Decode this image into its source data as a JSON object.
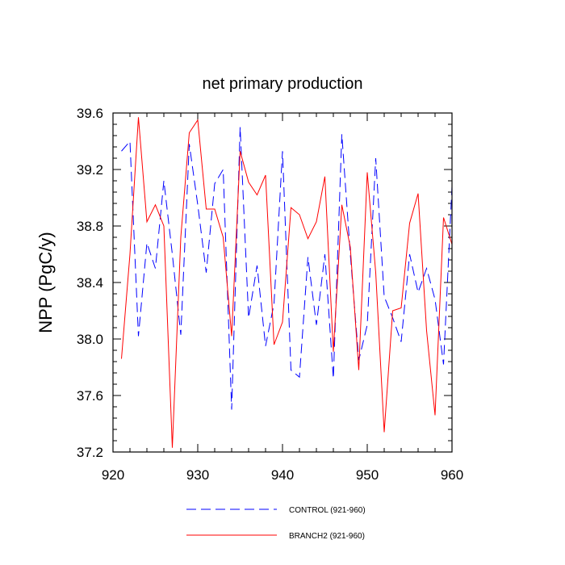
{
  "chart_data": {
    "type": "line",
    "title": "net primary production",
    "xlabel": "",
    "ylabel": "NPP  (PgC/y)",
    "xlim": [
      920,
      960
    ],
    "ylim": [
      37.2,
      39.6
    ],
    "x_ticks": [
      "920",
      "930",
      "940",
      "950",
      "960"
    ],
    "y_ticks": [
      "37.2",
      "37.6",
      "38.0",
      "38.4",
      "38.8",
      "39.2",
      "39.6"
    ],
    "x": [
      921,
      922,
      923,
      924,
      925,
      926,
      927,
      928,
      929,
      930,
      931,
      932,
      933,
      934,
      935,
      936,
      937,
      938,
      939,
      940,
      941,
      942,
      943,
      944,
      945,
      946,
      947,
      948,
      949,
      950,
      951,
      952,
      953,
      954,
      955,
      956,
      957,
      958,
      959,
      960
    ],
    "series": [
      {
        "name": "CONTROL (921-960)",
        "color": "#0000ff",
        "style": "dashed",
        "values": [
          39.33,
          39.4,
          38.02,
          38.68,
          38.5,
          39.12,
          38.6,
          38.03,
          39.38,
          38.95,
          38.47,
          39.1,
          39.2,
          37.5,
          39.5,
          38.15,
          38.52,
          37.95,
          38.25,
          39.33,
          37.78,
          37.73,
          38.58,
          38.1,
          38.6,
          37.72,
          39.45,
          38.6,
          37.85,
          38.1,
          39.28,
          38.3,
          38.15,
          37.98,
          38.6,
          38.33,
          38.5,
          38.28,
          37.82,
          39.08
        ]
      },
      {
        "name": "BRANCH2 (921-960)",
        "color": "#ff0000",
        "style": "solid",
        "values": [
          37.86,
          38.6,
          39.57,
          38.83,
          38.95,
          38.8,
          37.23,
          38.72,
          39.46,
          39.55,
          38.92,
          38.92,
          38.72,
          38.02,
          39.33,
          39.11,
          39.02,
          39.16,
          37.96,
          38.12,
          38.93,
          38.88,
          38.71,
          38.83,
          39.15,
          37.91,
          38.95,
          38.65,
          37.78,
          39.18,
          38.47,
          37.34,
          38.2,
          38.22,
          38.82,
          39.03,
          38.06,
          37.46,
          38.86,
          38.67
        ]
      }
    ],
    "legend": [
      "CONTROL (921-960)",
      "BRANCH2 (921-960)"
    ],
    "legend_position": "bottom"
  }
}
